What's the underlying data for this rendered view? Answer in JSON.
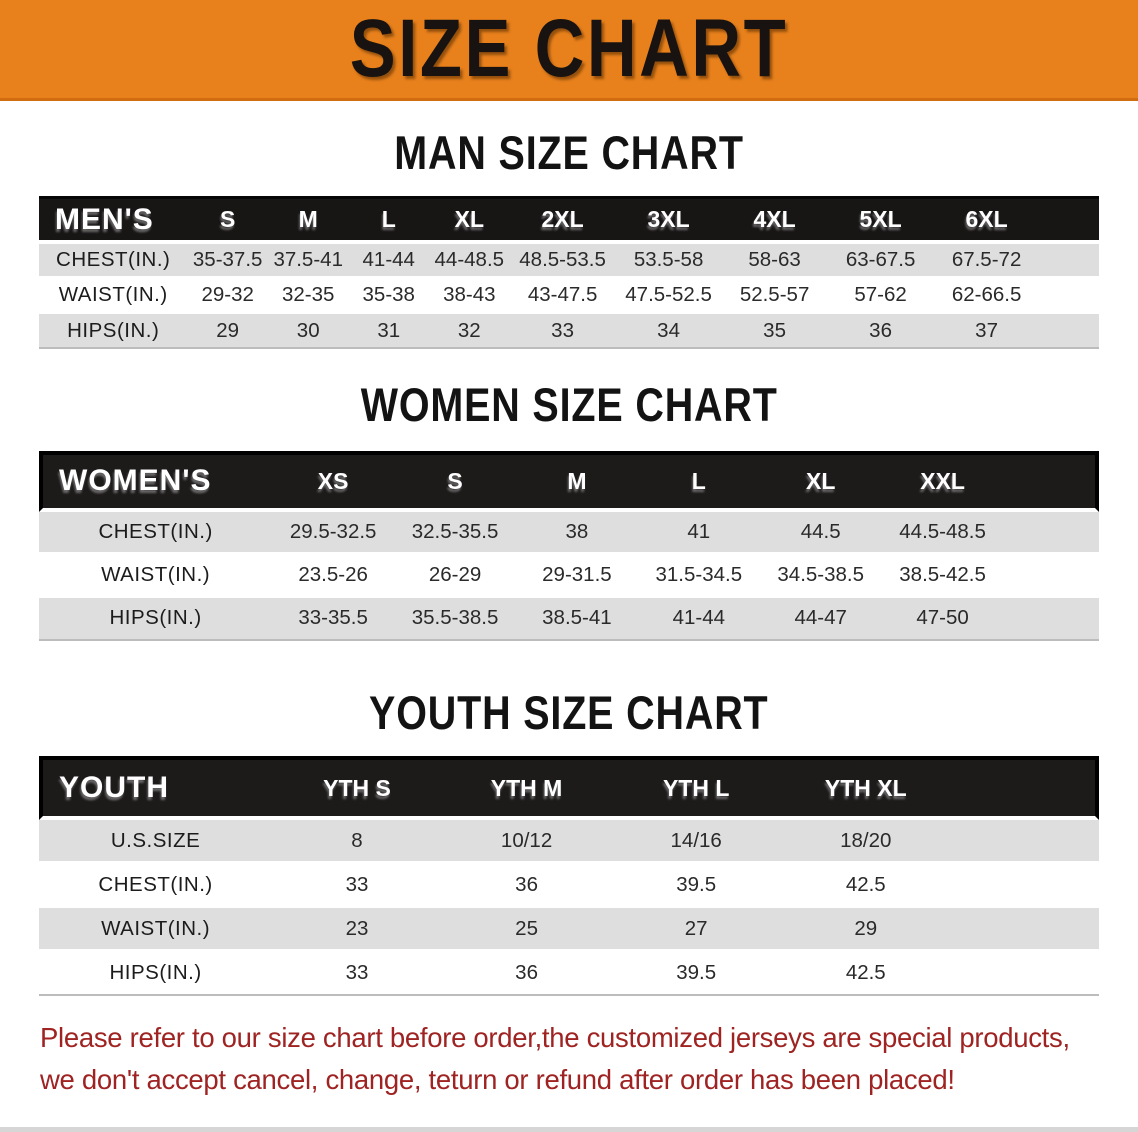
{
  "banner": {
    "title": "SIZE CHART"
  },
  "sections": [
    {
      "heading": "MAN SIZE CHART",
      "corner_label": "MEN'S",
      "columns": [
        "S",
        "M",
        "L",
        "XL",
        "2XL",
        "3XL",
        "4XL",
        "5XL",
        "6XL"
      ],
      "rows": [
        {
          "label": "CHEST(IN.)",
          "values": [
            "35-37.5",
            "37.5-41",
            "41-44",
            "44-48.5",
            "48.5-53.5",
            "53.5-58",
            "58-63",
            "63-67.5",
            "67.5-72"
          ]
        },
        {
          "label": "WAIST(IN.)",
          "values": [
            "29-32",
            "32-35",
            "35-38",
            "38-43",
            "43-47.5",
            "47.5-52.5",
            "52.5-57",
            "57-62",
            "62-66.5"
          ]
        },
        {
          "label": "HIPS(IN.)",
          "values": [
            "29",
            "30",
            "31",
            "32",
            "33",
            "34",
            "35",
            "36",
            "37"
          ]
        }
      ]
    },
    {
      "heading": "WOMEN SIZE CHART",
      "corner_label": "WOMEN'S",
      "columns": [
        "XS",
        "S",
        "M",
        "L",
        "XL",
        "XXL"
      ],
      "rows": [
        {
          "label": "CHEST(IN.)",
          "values": [
            "29.5-32.5",
            "32.5-35.5",
            "38",
            "41",
            "44.5",
            "44.5-48.5"
          ]
        },
        {
          "label": "WAIST(IN.)",
          "values": [
            "23.5-26",
            "26-29",
            "29-31.5",
            "31.5-34.5",
            "34.5-38.5",
            "38.5-42.5"
          ]
        },
        {
          "label": "HIPS(IN.)",
          "values": [
            "33-35.5",
            "35.5-38.5",
            "38.5-41",
            "41-44",
            "44-47",
            "47-50"
          ]
        }
      ]
    },
    {
      "heading": "YOUTH SIZE CHART",
      "corner_label": "YOUTH",
      "columns": [
        "YTH S",
        "YTH M",
        "YTH L",
        "YTH XL"
      ],
      "rows": [
        {
          "label": "U.S.SIZE",
          "values": [
            "8",
            "10/12",
            "14/16",
            "18/20"
          ]
        },
        {
          "label": "CHEST(IN.)",
          "values": [
            "33",
            "36",
            "39.5",
            "42.5"
          ]
        },
        {
          "label": "WAIST(IN.)",
          "values": [
            "23",
            "25",
            "27",
            "29"
          ]
        },
        {
          "label": "HIPS(IN.)",
          "values": [
            "33",
            "36",
            "39.5",
            "42.5"
          ]
        }
      ]
    }
  ],
  "disclaimer": {
    "line1": "Please refer to our size chart before order,the customized jerseys are special products,",
    "line2": "we don't accept cancel, change, teturn or refund after order has been placed!"
  },
  "colors": {
    "banner_bg": "#E8811C",
    "table_header_bg": "#181515",
    "row_stripe": "#DEDEDE",
    "disclaimer_text": "#9E2322"
  }
}
